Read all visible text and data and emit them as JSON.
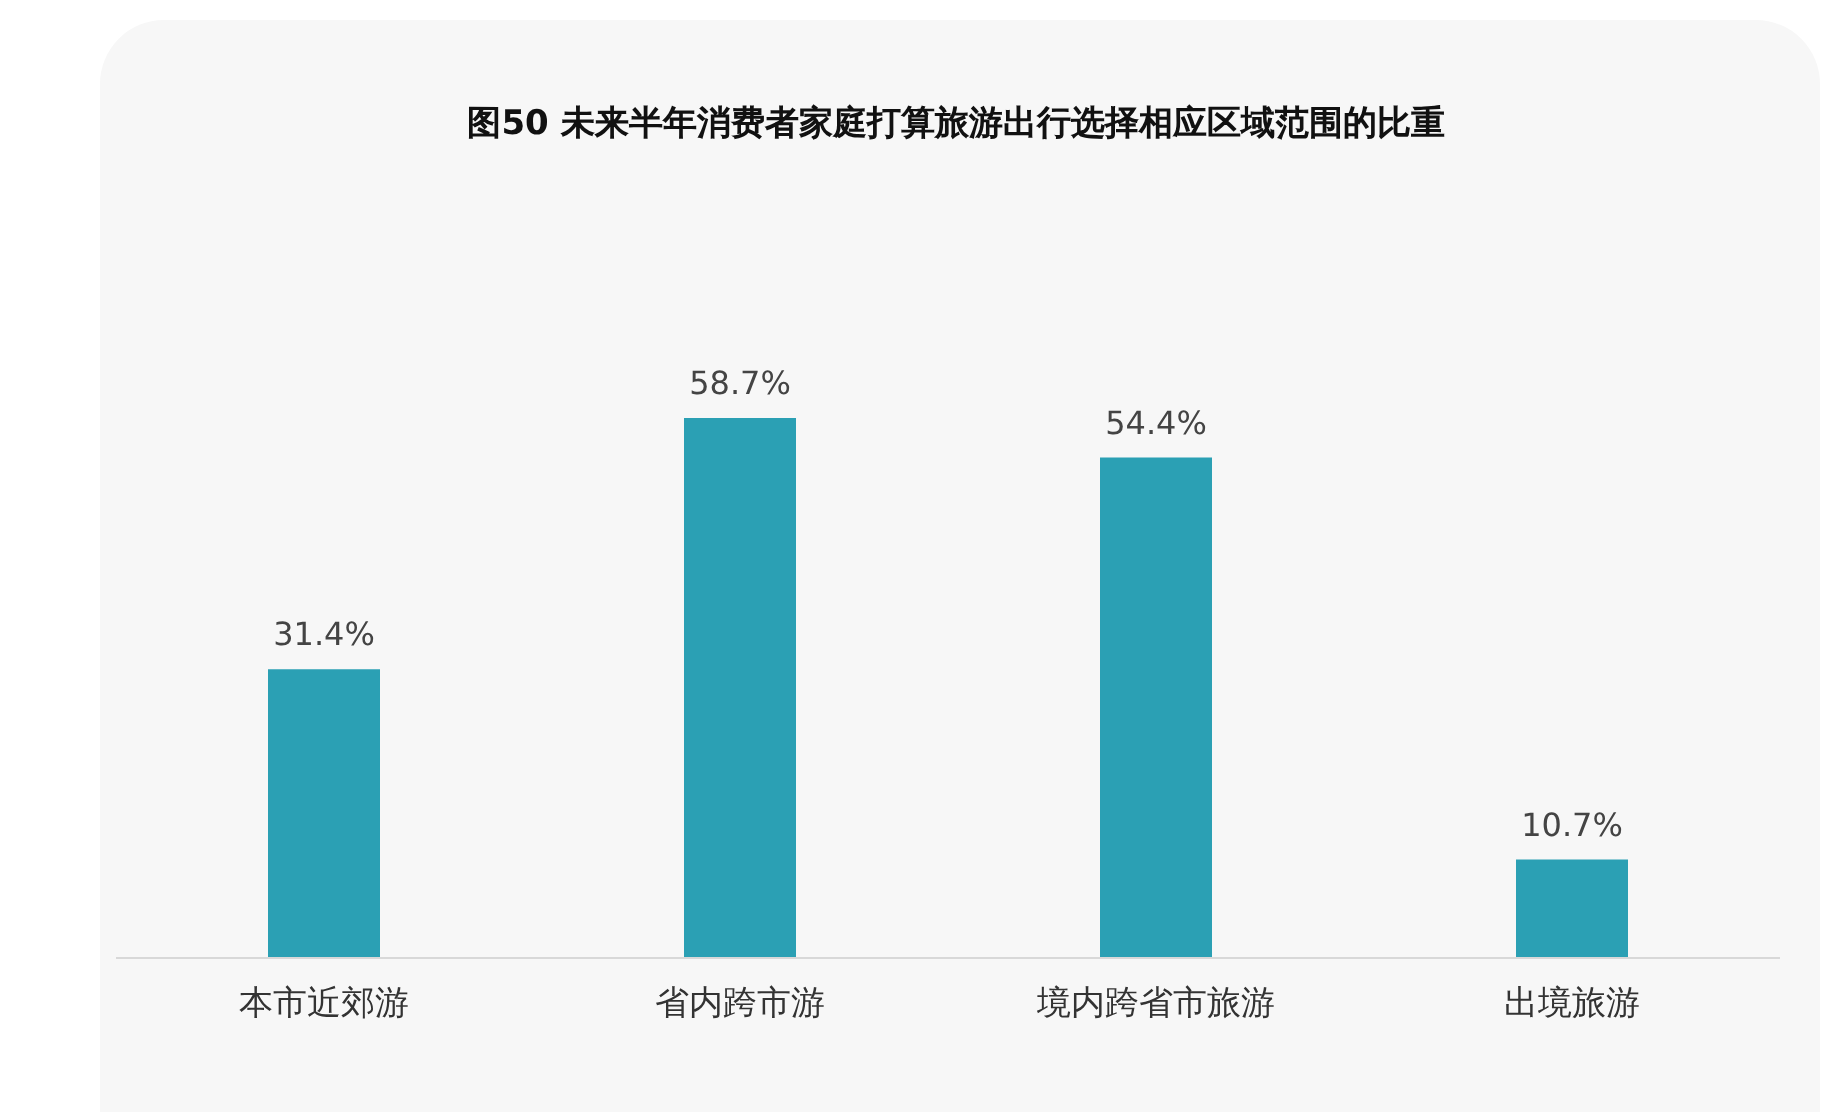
{
  "chart_data": {
    "type": "bar",
    "title": "图50 未来半年消费者家庭打算旅游出行选择相应区域范围的比重",
    "categories": [
      "本市近郊游",
      "省内跨市游",
      "境内跨省市旅游",
      "出境旅游"
    ],
    "values": [
      31.4,
      58.7,
      54.4,
      10.7
    ],
    "value_labels": [
      "31.4%",
      "58.7%",
      "54.4%",
      "10.7%"
    ],
    "color": "#2ba0b4"
  }
}
